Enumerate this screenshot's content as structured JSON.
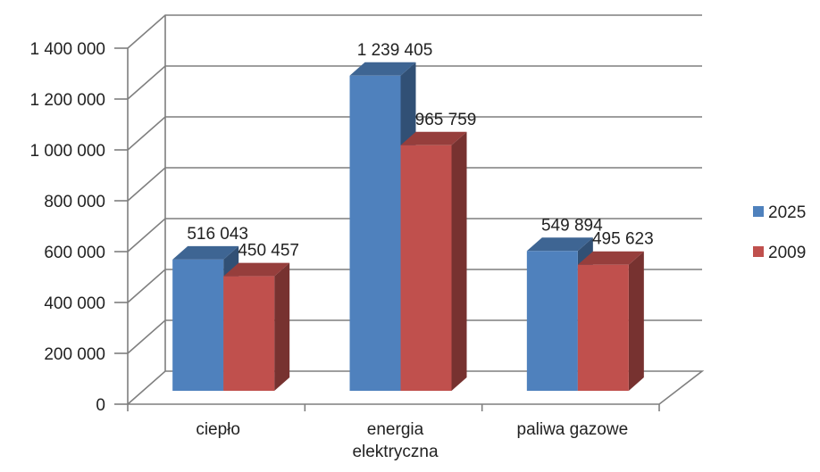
{
  "chart_data": {
    "type": "bar",
    "title": "",
    "xlabel": "",
    "ylabel": "",
    "categories": [
      "ciepło",
      "energia elektryczna",
      "paliwa gazowe"
    ],
    "series": [
      {
        "name": "2025",
        "values": [
          516043,
          1239405,
          549894
        ],
        "color": "#4f81bd"
      },
      {
        "name": "2009",
        "values": [
          450457,
          965759,
          495623
        ],
        "color": "#c0504d"
      }
    ],
    "data_labels": [
      [
        "516 043",
        "1 239 405",
        "549 894"
      ],
      [
        "450 457",
        "965 759",
        "495 623"
      ]
    ],
    "yticks": [
      "0",
      "200 000",
      "400 000",
      "600 000",
      "800 000",
      "1 000 000",
      "1 200 000",
      "1 400 000"
    ],
    "ylim": [
      0,
      1400000
    ],
    "grid": true,
    "style": "3d",
    "legend": "right"
  }
}
